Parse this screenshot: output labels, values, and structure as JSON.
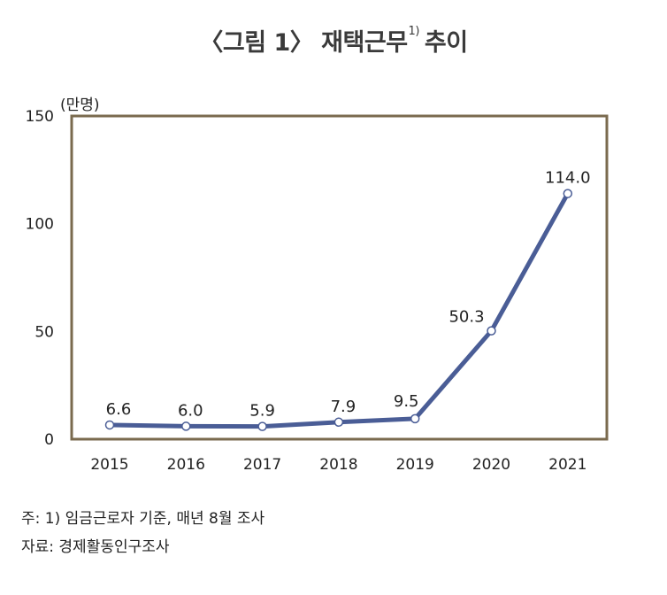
{
  "title": {
    "main": "〈그림 1〉 재택근무",
    "footnote_ref": "1)",
    "suffix": "추이"
  },
  "unit_label": "(만명)",
  "notes": {
    "note": "주: 1) 임금근로자 기준, 매년 8월 조사",
    "source": "자료: 경제활동인구조사"
  },
  "colors": {
    "line": "#4a5d96",
    "frame": "#7a6a4e",
    "marker_fill": "#ffffff"
  },
  "chart_data": {
    "type": "line",
    "title": "〈그림 1〉 재택근무1) 추이",
    "ylabel": "(만명)",
    "xlabel": "",
    "categories": [
      "2015",
      "2016",
      "2017",
      "2018",
      "2019",
      "2020",
      "2021"
    ],
    "series": [
      {
        "values": [
          6.6,
          6.0,
          5.9,
          7.9,
          9.5,
          50.3,
          114.0
        ],
        "labels": [
          "6.6",
          "6.0",
          "5.9",
          "7.9",
          "9.5",
          "50.3",
          "114.0"
        ]
      }
    ],
    "ylim": [
      0,
      150
    ],
    "yticks": [
      "0",
      "50",
      "100",
      "150"
    ],
    "grid": false,
    "legend": "none"
  }
}
